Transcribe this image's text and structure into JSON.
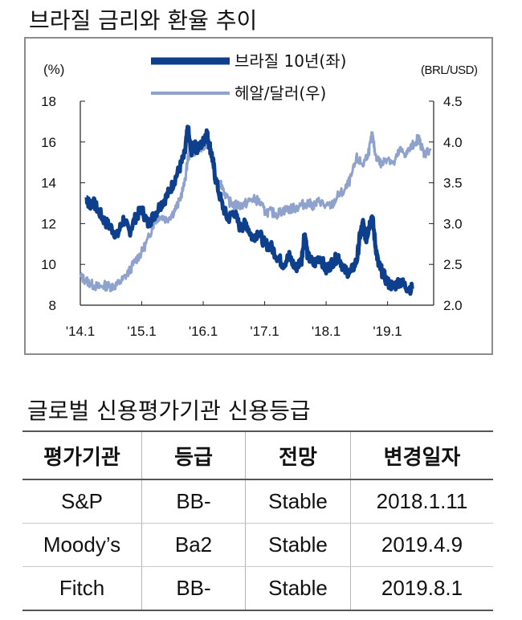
{
  "chart_data": {
    "type": "line",
    "title": "브라질 금리와 환율 추이",
    "left_axis_unit": "(%)",
    "right_axis_unit": "(BRL/USD)",
    "ylim_left": [
      8,
      18
    ],
    "ylim_right": [
      2.0,
      4.5
    ],
    "left_ticks": [
      "18",
      "16",
      "14",
      "12",
      "10",
      "8"
    ],
    "right_ticks": [
      "4.5",
      "4.0",
      "3.5",
      "3.0",
      "2.5",
      "2.0"
    ],
    "x_ticks": [
      "'14.1",
      "'15.1",
      "'16.1",
      "'17.1",
      "'18.1",
      "'19.1"
    ],
    "xlim": [
      2014.0,
      2019.75
    ],
    "series": [
      {
        "name": "브라질 10년(좌)",
        "axis": "left",
        "color": "#0e3f8c",
        "x": [
          2014.1,
          2014.15,
          2014.2,
          2014.3,
          2014.4,
          2014.5,
          2014.6,
          2014.7,
          2014.8,
          2014.9,
          2015.0,
          2015.1,
          2015.2,
          2015.3,
          2015.4,
          2015.5,
          2015.6,
          2015.7,
          2015.75,
          2015.8,
          2015.85,
          2015.9,
          2016.0,
          2016.05,
          2016.1,
          2016.15,
          2016.2,
          2016.3,
          2016.4,
          2016.5,
          2016.6,
          2016.7,
          2016.8,
          2016.9,
          2017.0,
          2017.1,
          2017.2,
          2017.3,
          2017.4,
          2017.5,
          2017.6,
          2017.65,
          2017.7,
          2017.8,
          2017.9,
          2018.0,
          2018.1,
          2018.2,
          2018.3,
          2018.4,
          2018.5,
          2018.55,
          2018.6,
          2018.65,
          2018.7,
          2018.75,
          2018.8,
          2018.85,
          2018.9,
          2019.0,
          2019.1,
          2019.2,
          2019.3,
          2019.4
        ],
        "values": [
          13.3,
          12.9,
          13.1,
          12.6,
          12.1,
          11.8,
          11.4,
          12.2,
          11.6,
          12.3,
          12.7,
          12.0,
          12.4,
          12.9,
          13.3,
          13.9,
          14.6,
          15.4,
          16.7,
          15.5,
          15.9,
          15.6,
          16.0,
          16.5,
          15.9,
          15.2,
          14.2,
          13.0,
          12.2,
          12.6,
          11.8,
          12.0,
          11.3,
          11.6,
          11.0,
          10.9,
          10.4,
          10.0,
          10.4,
          9.8,
          10.2,
          11.6,
          10.4,
          10.0,
          10.4,
          9.7,
          10.1,
          10.4,
          9.7,
          9.6,
          10.2,
          11.4,
          12.0,
          11.2,
          11.9,
          12.4,
          11.0,
          10.0,
          9.7,
          9.1,
          8.9,
          9.2,
          8.9,
          8.8
        ]
      },
      {
        "name": "헤알/달러(우)",
        "axis": "right",
        "color": "#8fa2cc",
        "x": [
          2014.0,
          2014.1,
          2014.2,
          2014.3,
          2014.4,
          2014.5,
          2014.6,
          2014.7,
          2014.8,
          2014.9,
          2015.0,
          2015.1,
          2015.2,
          2015.3,
          2015.4,
          2015.5,
          2015.6,
          2015.7,
          2015.75,
          2015.8,
          2015.9,
          2016.0,
          2016.05,
          2016.1,
          2016.2,
          2016.3,
          2016.4,
          2016.5,
          2016.6,
          2016.7,
          2016.8,
          2016.9,
          2017.0,
          2017.1,
          2017.2,
          2017.3,
          2017.4,
          2017.5,
          2017.6,
          2017.7,
          2017.8,
          2017.9,
          2018.0,
          2018.1,
          2018.2,
          2018.3,
          2018.4,
          2018.5,
          2018.6,
          2018.7,
          2018.75,
          2018.8,
          2018.9,
          2019.0,
          2019.1,
          2019.2,
          2019.3,
          2019.4,
          2019.5,
          2019.55,
          2019.6,
          2019.7
        ],
        "values": [
          2.35,
          2.3,
          2.25,
          2.22,
          2.24,
          2.23,
          2.25,
          2.32,
          2.42,
          2.55,
          2.65,
          2.8,
          3.02,
          3.1,
          3.05,
          3.12,
          3.25,
          3.5,
          3.8,
          3.9,
          3.88,
          3.95,
          4.0,
          3.95,
          3.55,
          3.48,
          3.28,
          3.23,
          3.22,
          3.25,
          3.3,
          3.28,
          3.15,
          3.14,
          3.12,
          3.16,
          3.18,
          3.19,
          3.23,
          3.25,
          3.22,
          3.28,
          3.2,
          3.23,
          3.35,
          3.4,
          3.55,
          3.8,
          3.72,
          3.9,
          4.1,
          3.85,
          3.72,
          3.82,
          3.73,
          3.9,
          3.85,
          3.95,
          4.05,
          3.95,
          3.85,
          3.92
        ]
      }
    ]
  },
  "table": {
    "title": "글로벌 신용평가기관 신용등급",
    "headers": [
      "평가기관",
      "등급",
      "전망",
      "변경일자"
    ],
    "rows": [
      [
        "S&P",
        "BB-",
        "Stable",
        "2018.1.11"
      ],
      [
        "Moody’s",
        "Ba2",
        "Stable",
        "2019.4.9"
      ],
      [
        "Fitch",
        "BB-",
        "Stable",
        "2019.8.1"
      ]
    ]
  }
}
